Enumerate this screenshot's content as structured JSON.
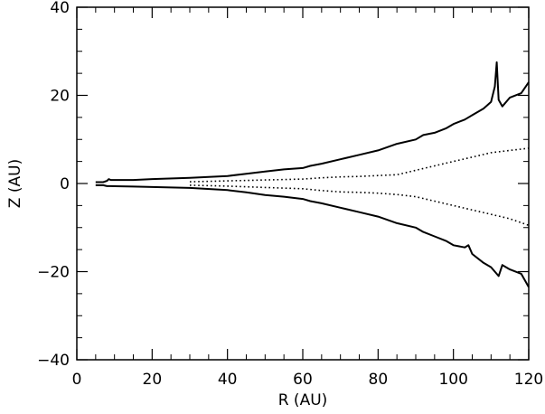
{
  "chart_data": {
    "type": "line",
    "title": "",
    "xlabel": "R (AU)",
    "ylabel": "Z (AU)",
    "xlim": [
      0,
      120
    ],
    "ylim": [
      -40,
      40
    ],
    "x_ticks": [
      0,
      20,
      40,
      60,
      80,
      100,
      120
    ],
    "y_ticks": [
      -40,
      -20,
      0,
      20,
      40
    ],
    "grid": false,
    "legend": "none",
    "series": [
      {
        "style": "solid",
        "x": [
          5,
          7,
          8,
          8.5,
          9,
          15,
          20,
          30,
          40,
          45,
          50,
          55,
          60,
          62,
          65,
          70,
          75,
          80,
          85,
          90,
          92,
          95,
          98,
          100,
          103,
          105,
          108,
          110,
          111,
          111.5,
          112,
          113,
          115,
          118,
          120
        ],
        "y": [
          0.3,
          0.3,
          0.6,
          1.0,
          0.8,
          0.8,
          1.0,
          1.3,
          1.7,
          2.2,
          2.7,
          3.2,
          3.5,
          4.0,
          4.5,
          5.5,
          6.5,
          7.5,
          9.0,
          10.0,
          11.0,
          11.5,
          12.5,
          13.5,
          14.5,
          15.5,
          17.0,
          18.5,
          22.0,
          27.5,
          19.0,
          17.5,
          19.5,
          20.5,
          23.0
        ]
      },
      {
        "style": "solid",
        "x": [
          5,
          7,
          8,
          9,
          15,
          20,
          30,
          40,
          45,
          50,
          55,
          60,
          62,
          65,
          70,
          75,
          80,
          85,
          90,
          92,
          95,
          98,
          100,
          103,
          104,
          105,
          108,
          110,
          112,
          113,
          115,
          118,
          120
        ],
        "y": [
          -0.4,
          -0.4,
          -0.6,
          -0.6,
          -0.7,
          -0.8,
          -1.0,
          -1.5,
          -2.0,
          -2.6,
          -3.0,
          -3.5,
          -4.0,
          -4.5,
          -5.5,
          -6.5,
          -7.5,
          -9.0,
          -10.0,
          -11.0,
          -12.0,
          -13.0,
          -14.0,
          -14.5,
          -14.0,
          -16.0,
          -18.0,
          -19.0,
          -21.0,
          -18.5,
          -19.5,
          -20.5,
          -23.5
        ]
      },
      {
        "style": "dotted",
        "x": [
          30,
          40,
          50,
          60,
          65,
          70,
          75,
          80,
          85,
          90,
          95,
          100,
          105,
          110,
          115,
          120
        ],
        "y": [
          0.4,
          0.6,
          0.8,
          1.0,
          1.3,
          1.5,
          1.6,
          1.8,
          2.0,
          3.0,
          4.0,
          5.0,
          6.0,
          7.0,
          7.5,
          8.0
        ]
      },
      {
        "style": "dotted",
        "x": [
          30,
          40,
          50,
          60,
          65,
          70,
          75,
          80,
          85,
          90,
          95,
          100,
          105,
          110,
          115,
          120
        ],
        "y": [
          -0.4,
          -0.6,
          -0.9,
          -1.2,
          -1.6,
          -1.9,
          -2.0,
          -2.2,
          -2.5,
          -3.0,
          -4.0,
          -5.0,
          -6.0,
          -7.0,
          -8.0,
          -9.5
        ]
      }
    ]
  }
}
